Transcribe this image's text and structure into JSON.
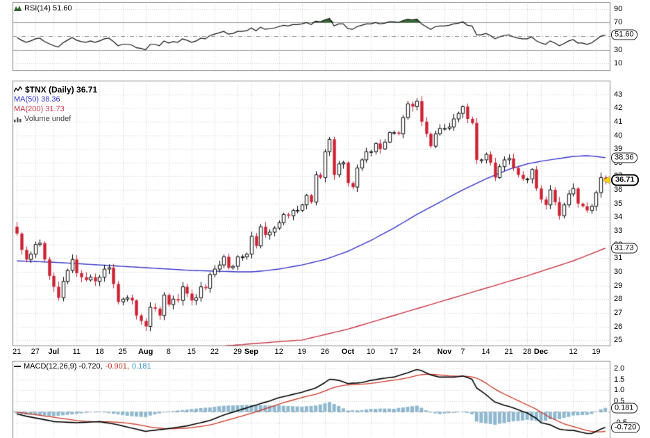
{
  "colors": {
    "bg": "#ffffff",
    "grid": "#cccccc",
    "frame": "#888888",
    "candle_down": "#cc2233",
    "candle_up": "#000000",
    "ma50": "#3333cc",
    "ma200": "#cc3344",
    "rsi_line": "#111111",
    "rsi_fill": "#336633",
    "macd_line": "#000000",
    "signal_line": "#cc3322",
    "hist_fill": "#8fb8cf",
    "hist_text": "#3399cc",
    "last_marker": "#ffd400"
  },
  "rsi_panel": {
    "indicator_label": "RSI(14) 51.60",
    "yticks": [
      90,
      70,
      30,
      10
    ],
    "overbought": 70,
    "oversold": 30,
    "midline": 50,
    "box": {
      "label": "51.60",
      "value": 51.6,
      "name": "rsi-value-box",
      "style": "normal"
    }
  },
  "price_panel": {
    "symbol_label": "$TNX (Daily) 36.71",
    "ma50_label": "MA(50) 38.36",
    "ma200_label": "MA(200) 31.73",
    "volume_label": "Volume undef",
    "yticks": [
      43,
      42,
      41,
      40,
      39,
      38,
      37,
      36,
      35,
      34,
      33,
      32,
      31,
      30,
      29,
      28,
      27,
      26,
      25
    ],
    "boxes": [
      {
        "label": "38.36",
        "value": 38.36,
        "name": "ma50-value-box",
        "style": "normal"
      },
      {
        "label": "36.71",
        "value": 36.71,
        "name": "last-price-box",
        "style": "last"
      },
      {
        "label": "31.73",
        "value": 31.73,
        "name": "ma200-value-box",
        "style": "normal"
      }
    ]
  },
  "macd_panel": {
    "label": "MACD(12,26,9) -0.720,",
    "signal_value": "-0.901,",
    "hist_value": "0.181",
    "yticks": [
      "2.0",
      "1.5",
      "1.0",
      "0.5",
      "-0.5"
    ],
    "boxes": [
      {
        "label": "0.181",
        "value": 0.181,
        "name": "macd-hist-box",
        "style": "normal"
      },
      {
        "label": "-0.720",
        "value": -0.72,
        "name": "macd-value-box",
        "style": "normal"
      }
    ]
  },
  "x_axis": {
    "ticks": [
      {
        "label": "21",
        "index": 0,
        "bold": false
      },
      {
        "label": "27",
        "index": 4,
        "bold": false
      },
      {
        "label": "Jul",
        "index": 8,
        "bold": true
      },
      {
        "label": "11",
        "index": 13,
        "bold": false
      },
      {
        "label": "18",
        "index": 18,
        "bold": false
      },
      {
        "label": "25",
        "index": 23,
        "bold": false
      },
      {
        "label": "Aug",
        "index": 28,
        "bold": true
      },
      {
        "label": "8",
        "index": 33,
        "bold": false
      },
      {
        "label": "15",
        "index": 38,
        "bold": false
      },
      {
        "label": "22",
        "index": 43,
        "bold": false
      },
      {
        "label": "29",
        "index": 48,
        "bold": false
      },
      {
        "label": "Sep",
        "index": 51,
        "bold": true
      },
      {
        "label": "12",
        "index": 57,
        "bold": false
      },
      {
        "label": "19",
        "index": 62,
        "bold": false
      },
      {
        "label": "26",
        "index": 67,
        "bold": false
      },
      {
        "label": "Oct",
        "index": 72,
        "bold": true
      },
      {
        "label": "10",
        "index": 77,
        "bold": false
      },
      {
        "label": "17",
        "index": 82,
        "bold": false
      },
      {
        "label": "24",
        "index": 87,
        "bold": false
      },
      {
        "label": "Nov",
        "index": 93,
        "bold": true
      },
      {
        "label": "7",
        "index": 97,
        "bold": false
      },
      {
        "label": "14",
        "index": 102,
        "bold": false
      },
      {
        "label": "21",
        "index": 107,
        "bold": false
      },
      {
        "label": "28",
        "index": 111,
        "bold": false
      },
      {
        "label": "Dec",
        "index": 114,
        "bold": true
      },
      {
        "label": "12",
        "index": 121,
        "bold": false
      },
      {
        "label": "19",
        "index": 126,
        "bold": false
      }
    ]
  },
  "chart_data": {
    "type": "candlestick",
    "symbol": "$TNX",
    "timeframe": "Daily",
    "title": "$TNX (Daily) 36.71",
    "last_close": 36.71,
    "ma50_last": 38.36,
    "ma200_last": 31.73,
    "rsi_last": 51.6,
    "macd_last": -0.72,
    "signal_last": -0.901,
    "hist_last": 0.181,
    "price_ylim": [
      25,
      43
    ],
    "rsi_ylim": [
      0,
      100
    ],
    "macd_ylim": [
      -1.0,
      2.0
    ],
    "first_open": 33.3,
    "closes": [
      32.8,
      31.6,
      30.9,
      31.3,
      32.0,
      32.1,
      30.9,
      29.7,
      28.9,
      28.1,
      29.3,
      30.1,
      30.9,
      29.9,
      29.6,
      29.4,
      29.6,
      29.3,
      29.6,
      30.2,
      30.3,
      29.1,
      27.8,
      28.0,
      28.1,
      27.9,
      26.8,
      26.4,
      26.0,
      27.4,
      27.3,
      26.8,
      28.3,
      27.6,
      28.0,
      27.9,
      28.9,
      28.4,
      27.9,
      28.1,
      28.9,
      28.8,
      29.8,
      30.2,
      30.5,
      31.1,
      30.3,
      30.4,
      31.1,
      31.1,
      31.3,
      32.6,
      31.9,
      33.3,
      32.7,
      32.9,
      33.2,
      33.6,
      34.2,
      34.1,
      34.5,
      34.5,
      34.9,
      35.6,
      35.1,
      37.1,
      36.9,
      38.8,
      39.7,
      37.1,
      37.9,
      38.0,
      36.5,
      36.2,
      37.6,
      38.2,
      38.8,
      38.8,
      39.4,
      39.0,
      39.5,
      40.2,
      40.2,
      40.1,
      41.3,
      42.3,
      42.1,
      42.5,
      41.0,
      40.1,
      39.2,
      40.1,
      40.5,
      40.5,
      40.6,
      41.2,
      41.6,
      42.1,
      41.2,
      40.9,
      38.2,
      38.2,
      38.6,
      38.0,
      36.9,
      37.7,
      38.2,
      38.3,
      37.6,
      37.1,
      36.8,
      36.8,
      37.5,
      36.1,
      35.3,
      34.9,
      36.0,
      35.1,
      34.1,
      34.9,
      35.7,
      36.1,
      35.0,
      34.8,
      34.5,
      34.8,
      35.8,
      36.9,
      36.71
    ],
    "ma50": [
      30.8,
      30.79,
      30.78,
      30.76,
      30.75,
      30.74,
      30.72,
      30.71,
      30.7,
      30.68,
      30.66,
      30.64,
      30.62,
      30.6,
      30.58,
      30.56,
      30.54,
      30.52,
      30.5,
      30.48,
      30.46,
      30.44,
      30.42,
      30.4,
      30.38,
      30.36,
      30.34,
      30.32,
      30.3,
      30.28,
      30.26,
      30.24,
      30.22,
      30.2,
      30.18,
      30.16,
      30.14,
      30.12,
      30.1,
      30.09,
      30.08,
      30.07,
      30.06,
      30.05,
      30.04,
      30.03,
      30.02,
      30.01,
      30.0,
      30.0,
      30.0,
      30.0,
      30.02,
      30.05,
      30.08,
      30.12,
      30.16,
      30.2,
      30.26,
      30.32,
      30.38,
      30.44,
      30.5,
      30.58,
      30.66,
      30.74,
      30.82,
      30.9,
      31.02,
      31.14,
      31.26,
      31.38,
      31.5,
      31.66,
      31.82,
      31.98,
      32.14,
      32.3,
      32.48,
      32.66,
      32.84,
      33.02,
      33.2,
      33.4,
      33.6,
      33.8,
      34.0,
      34.2,
      34.38,
      34.56,
      34.74,
      34.92,
      35.1,
      35.28,
      35.46,
      35.64,
      35.82,
      36.0,
      36.16,
      36.32,
      36.48,
      36.64,
      36.8,
      36.94,
      37.08,
      37.22,
      37.36,
      37.5,
      37.6,
      37.7,
      37.8,
      37.9,
      37.97,
      38.03,
      38.1,
      38.15,
      38.2,
      38.25,
      38.3,
      38.35,
      38.4,
      38.45,
      38.47,
      38.49,
      38.5,
      38.48,
      38.45,
      38.4,
      38.36
    ],
    "ma200": [
      23.4,
      23.43,
      23.45,
      23.48,
      23.5,
      23.53,
      23.56,
      23.58,
      23.61,
      23.63,
      23.66,
      23.69,
      23.71,
      23.74,
      23.76,
      23.79,
      23.82,
      23.84,
      23.87,
      23.89,
      23.92,
      23.95,
      23.97,
      24.0,
      24.02,
      24.05,
      24.08,
      24.1,
      24.13,
      24.15,
      24.18,
      24.21,
      24.23,
      24.26,
      24.28,
      24.31,
      24.34,
      24.36,
      24.39,
      24.41,
      24.44,
      24.47,
      24.49,
      24.52,
      24.54,
      24.57,
      24.6,
      24.62,
      24.65,
      24.67,
      24.7,
      24.73,
      24.75,
      24.78,
      24.8,
      24.83,
      24.86,
      24.88,
      24.91,
      24.93,
      24.96,
      24.99,
      25.0,
      25.08,
      25.16,
      25.24,
      25.32,
      25.4,
      25.48,
      25.56,
      25.64,
      25.72,
      25.8,
      25.9,
      26.0,
      26.1,
      26.2,
      26.3,
      26.4,
      26.5,
      26.6,
      26.7,
      26.8,
      26.9,
      27.0,
      27.1,
      27.2,
      27.3,
      27.4,
      27.5,
      27.6,
      27.7,
      27.8,
      27.9,
      28.0,
      28.1,
      28.2,
      28.3,
      28.4,
      28.5,
      28.6,
      28.7,
      28.8,
      28.9,
      29.0,
      29.1,
      29.2,
      29.3,
      29.4,
      29.5,
      29.6,
      29.7,
      29.81,
      29.92,
      30.03,
      30.14,
      30.25,
      30.36,
      30.47,
      30.58,
      30.69,
      30.8,
      30.93,
      31.06,
      31.2,
      31.33,
      31.46,
      31.6,
      31.73
    ],
    "rsi": [
      48,
      44,
      41,
      43,
      46,
      47,
      42,
      39,
      36,
      34,
      40,
      44,
      48,
      44,
      42,
      41,
      43,
      41,
      43,
      46,
      47,
      42,
      36,
      38,
      38,
      37,
      33,
      32,
      30,
      38,
      38,
      36,
      43,
      40,
      42,
      41,
      46,
      44,
      41,
      43,
      47,
      46,
      51,
      53,
      55,
      57,
      53,
      54,
      57,
      57,
      58,
      62,
      58,
      63,
      60,
      61,
      62,
      64,
      66,
      65,
      67,
      67,
      68,
      70,
      67,
      72,
      71,
      74,
      76,
      65,
      68,
      68,
      61,
      60,
      64,
      66,
      68,
      68,
      70,
      68,
      69,
      71,
      71,
      70,
      73,
      75,
      74,
      75,
      68,
      64,
      60,
      64,
      65,
      65,
      66,
      68,
      69,
      71,
      66,
      65,
      52,
      52,
      54,
      51,
      46,
      49,
      51,
      52,
      49,
      47,
      46,
      46,
      49,
      43,
      40,
      38,
      43,
      40,
      36,
      39,
      43,
      45,
      40,
      40,
      38,
      40,
      45,
      50,
      51.6
    ],
    "macd": [
      -0.1,
      -0.15,
      -0.2,
      -0.24,
      -0.28,
      -0.32,
      -0.36,
      -0.4,
      -0.45,
      -0.46,
      -0.47,
      -0.48,
      -0.49,
      -0.5,
      -0.49,
      -0.48,
      -0.47,
      -0.46,
      -0.45,
      -0.49,
      -0.52,
      -0.56,
      -0.6,
      -0.65,
      -0.7,
      -0.75,
      -0.8,
      -0.85,
      -0.9,
      -0.87,
      -0.85,
      -0.82,
      -0.8,
      -0.77,
      -0.74,
      -0.71,
      -0.68,
      -0.65,
      -0.6,
      -0.55,
      -0.5,
      -0.45,
      -0.4,
      -0.32,
      -0.23,
      -0.15,
      -0.08,
      -0.02,
      0.05,
      0.12,
      0.18,
      0.25,
      0.31,
      0.38,
      0.44,
      0.5,
      0.58,
      0.65,
      0.7,
      0.75,
      0.8,
      0.85,
      0.9,
      0.97,
      1.03,
      1.1,
      1.22,
      1.35,
      1.5,
      1.48,
      1.45,
      1.38,
      1.3,
      1.32,
      1.33,
      1.35,
      1.4,
      1.45,
      1.48,
      1.52,
      1.55,
      1.58,
      1.6,
      1.67,
      1.73,
      1.8,
      1.88,
      1.95,
      1.9,
      1.8,
      1.7,
      1.65,
      1.6,
      1.6,
      1.6,
      1.6,
      1.62,
      1.65,
      1.58,
      1.5,
      1.1,
      0.95,
      0.8,
      0.62,
      0.45,
      0.38,
      0.3,
      0.25,
      0.18,
      0.1,
      0.02,
      -0.05,
      -0.18,
      -0.3,
      -0.5,
      -0.55,
      -0.6,
      -0.7,
      -0.8,
      -0.83,
      -0.85,
      -0.85,
      -0.9,
      -0.95,
      -1.0,
      -1.0,
      -0.9,
      -0.8,
      -0.72
    ],
    "signal": [
      -0.02,
      -0.04,
      -0.07,
      -0.1,
      -0.13,
      -0.16,
      -0.19,
      -0.22,
      -0.25,
      -0.28,
      -0.31,
      -0.34,
      -0.37,
      -0.4,
      -0.42,
      -0.44,
      -0.45,
      -0.46,
      -0.46,
      -0.46,
      -0.46,
      -0.47,
      -0.48,
      -0.5,
      -0.52,
      -0.55,
      -0.58,
      -0.62,
      -0.66,
      -0.7,
      -0.73,
      -0.75,
      -0.77,
      -0.78,
      -0.78,
      -0.77,
      -0.76,
      -0.75,
      -0.73,
      -0.7,
      -0.67,
      -0.64,
      -0.6,
      -0.55,
      -0.49,
      -0.43,
      -0.37,
      -0.31,
      -0.25,
      -0.19,
      -0.13,
      -0.07,
      0.0,
      0.07,
      0.14,
      0.21,
      0.28,
      0.35,
      0.42,
      0.48,
      0.54,
      0.6,
      0.66,
      0.71,
      0.76,
      0.81,
      0.88,
      0.96,
      1.05,
      1.12,
      1.18,
      1.22,
      1.24,
      1.25,
      1.26,
      1.27,
      1.29,
      1.31,
      1.34,
      1.37,
      1.4,
      1.43,
      1.46,
      1.49,
      1.53,
      1.57,
      1.62,
      1.67,
      1.71,
      1.73,
      1.73,
      1.72,
      1.7,
      1.68,
      1.66,
      1.65,
      1.64,
      1.64,
      1.63,
      1.61,
      1.55,
      1.45,
      1.33,
      1.18,
      1.05,
      0.93,
      0.82,
      0.72,
      0.62,
      0.52,
      0.42,
      0.32,
      0.22,
      0.12,
      -0.02,
      -0.14,
      -0.26,
      -0.36,
      -0.46,
      -0.55,
      -0.62,
      -0.68,
      -0.74,
      -0.8,
      -0.86,
      -0.9,
      -0.92,
      -0.92,
      -0.901
    ]
  }
}
